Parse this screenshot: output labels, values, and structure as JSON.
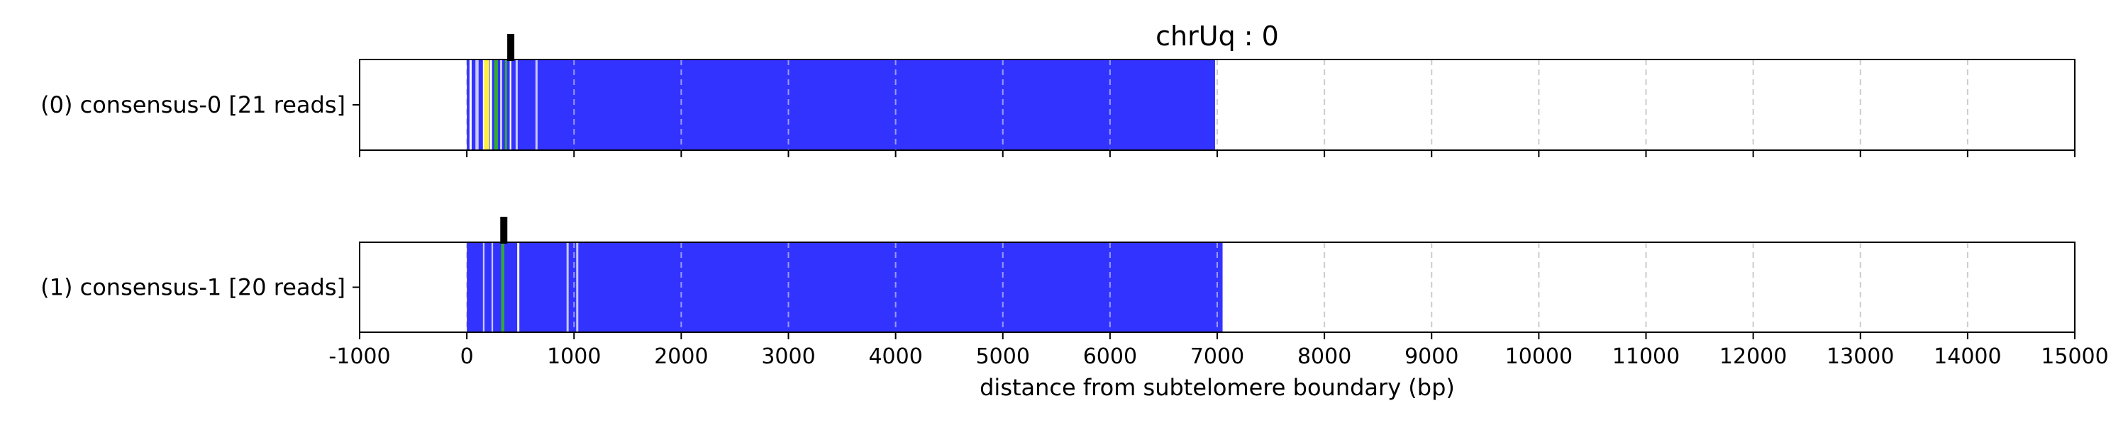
{
  "chart_data": {
    "type": "bar",
    "title": "chrUq : 0",
    "xlabel": "distance from subtelomere boundary (bp)",
    "xlim": [
      -1000,
      15000
    ],
    "xticks": [
      -1000,
      0,
      1000,
      2000,
      3000,
      4000,
      5000,
      6000,
      7000,
      8000,
      9000,
      10000,
      11000,
      12000,
      13000,
      14000,
      15000
    ],
    "grid": "vertical dashed",
    "colors": {
      "canonical": "#3333ff",
      "yellow": "#ffee44",
      "green": "#33aa33",
      "light": "#c8c8ff",
      "white": "#ffffff",
      "marker": "#000000",
      "grid": "#cccccc"
    },
    "tracks": [
      {
        "label": "(0) consensus-0 [21 reads]",
        "start": 0,
        "end": 6980,
        "boundary_marker": 410,
        "segments": [
          {
            "from": 25,
            "to": 45,
            "color": "white"
          },
          {
            "from": 80,
            "to": 110,
            "color": "light"
          },
          {
            "from": 150,
            "to": 185,
            "color": "white"
          },
          {
            "from": 160,
            "to": 210,
            "color": "yellow"
          },
          {
            "from": 215,
            "to": 235,
            "color": "white"
          },
          {
            "from": 255,
            "to": 290,
            "color": "green"
          },
          {
            "from": 310,
            "to": 330,
            "color": "light"
          },
          {
            "from": 355,
            "to": 375,
            "color": "green"
          },
          {
            "from": 400,
            "to": 415,
            "color": "white"
          },
          {
            "from": 455,
            "to": 475,
            "color": "light"
          },
          {
            "from": 640,
            "to": 660,
            "color": "light"
          }
        ]
      },
      {
        "label": "(1) consensus-1 [20 reads]",
        "start": 0,
        "end": 7050,
        "boundary_marker": 345,
        "segments": [
          {
            "from": 150,
            "to": 165,
            "color": "light"
          },
          {
            "from": 230,
            "to": 245,
            "color": "light"
          },
          {
            "from": 320,
            "to": 350,
            "color": "green"
          },
          {
            "from": 470,
            "to": 490,
            "color": "white"
          },
          {
            "from": 930,
            "to": 950,
            "color": "light"
          },
          {
            "from": 1020,
            "to": 1040,
            "color": "light"
          }
        ]
      }
    ]
  }
}
